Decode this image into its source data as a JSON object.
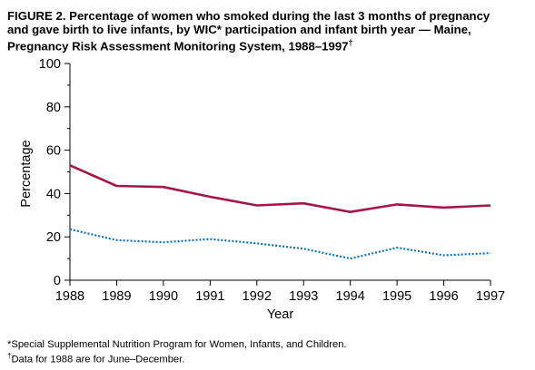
{
  "title": {
    "line1": "FIGURE 2. Percentage of women who smoked during the last 3 months of pregnancy",
    "line2": "and gave birth to live infants, by WIC* participation and infant birth year — Maine,",
    "line3": "Pregnancy Risk Assessment Monitoring System, 1988–1997",
    "line3_mark": "†"
  },
  "footnotes": {
    "note1": "*Special Supplemental Nutrition Program for Women, Infants, and Children.",
    "note2_mark": "†",
    "note2": "Data for 1988 are for June–December."
  },
  "chart_data": {
    "type": "line",
    "xlabel": "Year",
    "ylabel": "Percentage",
    "x": [
      1988,
      1989,
      1990,
      1991,
      1992,
      1993,
      1994,
      1995,
      1996,
      1997
    ],
    "ylim": [
      0,
      100
    ],
    "yticks": [
      0,
      20,
      40,
      60,
      80,
      100
    ],
    "grid": false,
    "series": [
      {
        "values": [
          53,
          43.5,
          43,
          38.5,
          34.5,
          35.5,
          31.5,
          35,
          33.5,
          34.5
        ],
        "color": "#a3164a",
        "style": "solid"
      },
      {
        "values": [
          23.5,
          18.5,
          17.5,
          19,
          17,
          14.5,
          10,
          15,
          11.5,
          12.5
        ],
        "color": "#0a73c4",
        "style": "dotted"
      }
    ]
  }
}
